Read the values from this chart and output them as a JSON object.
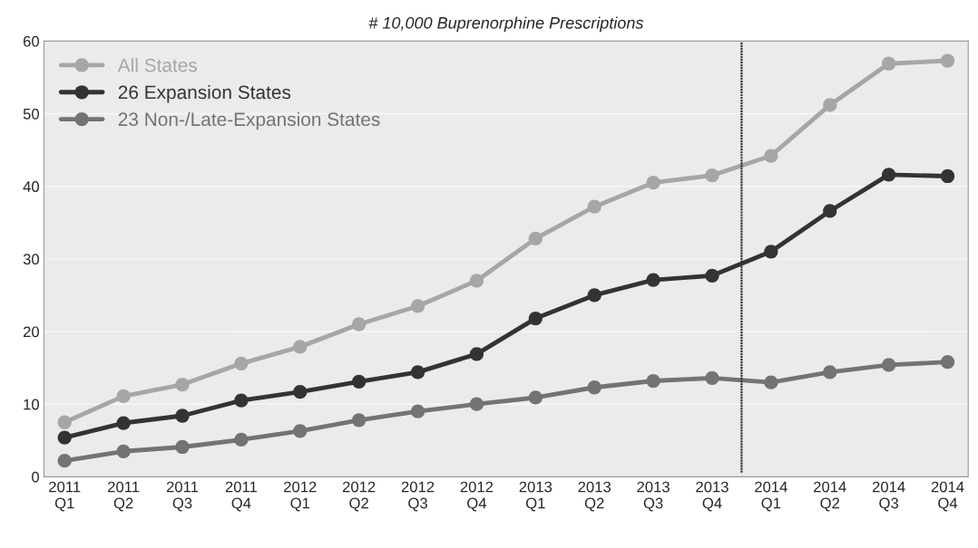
{
  "chart_data": {
    "type": "line",
    "title": "# 10,000 Buprenorphine Prescriptions",
    "categories": [
      "2011\nQ1",
      "2011\nQ2",
      "2011\nQ3",
      "2011\nQ4",
      "2012\nQ1",
      "2012\nQ2",
      "2012\nQ3",
      "2012\nQ4",
      "2013\nQ1",
      "2013\nQ2",
      "2013\nQ3",
      "2013\nQ4",
      "2014\nQ1",
      "2014\nQ2",
      "2014\nQ3",
      "2014\nQ4"
    ],
    "series": [
      {
        "name": "All States",
        "color": "#a6a6a6",
        "values": [
          7.5,
          11.1,
          12.7,
          15.6,
          17.9,
          21.0,
          23.5,
          27.0,
          32.8,
          37.2,
          40.5,
          41.5,
          44.2,
          51.2,
          56.9,
          57.3
        ]
      },
      {
        "name": "26 Expansion States",
        "color": "#333333",
        "values": [
          5.4,
          7.4,
          8.4,
          10.5,
          11.7,
          13.1,
          14.4,
          16.9,
          21.8,
          25.0,
          27.1,
          27.7,
          31.0,
          36.6,
          41.6,
          41.4
        ]
      },
      {
        "name": "23 Non-/Late-Expansion States",
        "color": "#737373",
        "values": [
          2.2,
          3.5,
          4.1,
          5.1,
          6.3,
          7.8,
          9.0,
          10.0,
          10.9,
          12.3,
          13.2,
          13.6,
          13.0,
          14.4,
          15.4,
          15.8
        ]
      }
    ],
    "ylim": [
      0,
      60
    ],
    "yticks": [
      0,
      10,
      20,
      30,
      40,
      50,
      60
    ],
    "grid": "y",
    "legend": "top left",
    "marker": "circle",
    "line_style": "solid"
  }
}
